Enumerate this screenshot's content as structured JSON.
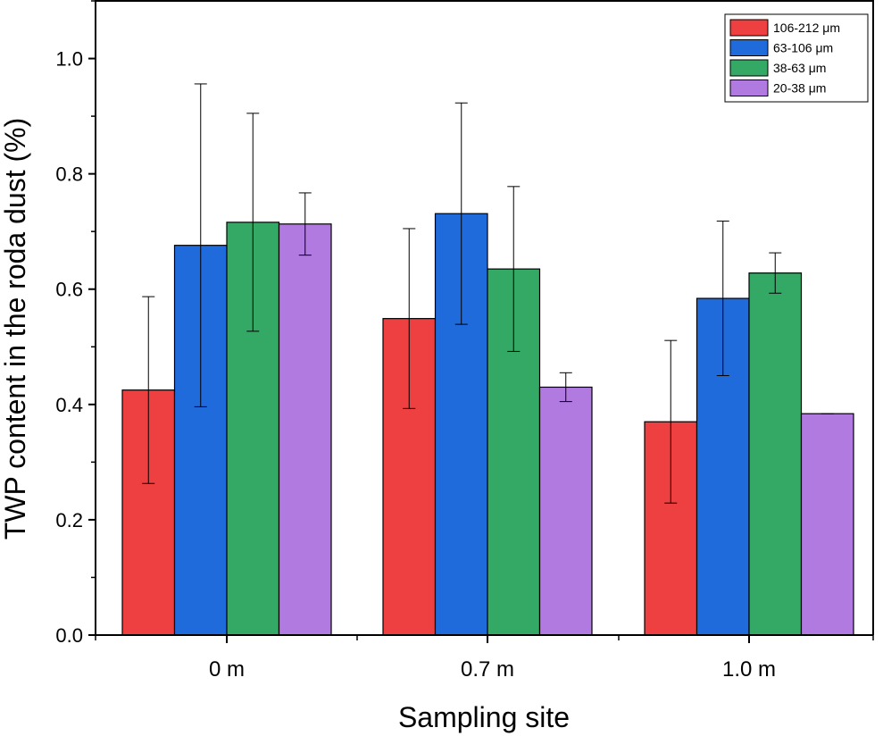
{
  "chart_data": {
    "type": "bar",
    "categories": [
      "0 m",
      "0.7 m",
      "1.0 m"
    ],
    "series": [
      {
        "name": "106-212 μm",
        "color": "#ee4040",
        "values": [
          0.425,
          0.549,
          0.37
        ],
        "errors": [
          0.162,
          0.156,
          0.141
        ]
      },
      {
        "name": "63-106 μm",
        "color": "#1f6bdc",
        "values": [
          0.676,
          0.731,
          0.584
        ],
        "errors": [
          0.28,
          0.192,
          0.134
        ]
      },
      {
        "name": "38-63 μm",
        "color": "#34a865",
        "values": [
          0.716,
          0.635,
          0.628
        ],
        "errors": [
          0.189,
          0.143,
          0.035
        ]
      },
      {
        "name": "20-38 μm",
        "color": "#b07ae0",
        "values": [
          0.713,
          0.43,
          0.384
        ],
        "errors": [
          0.054,
          0.025,
          0.0
        ]
      }
    ],
    "xlabel": "Sampling site",
    "ylabel": "TWP content in the roda dust (%)",
    "ylim": [
      0,
      1.1
    ],
    "yticks": [
      "0.0",
      "0.2",
      "0.4",
      "0.6",
      "0.8",
      "1.0"
    ],
    "legend_position": "top-right",
    "grid": false
  }
}
